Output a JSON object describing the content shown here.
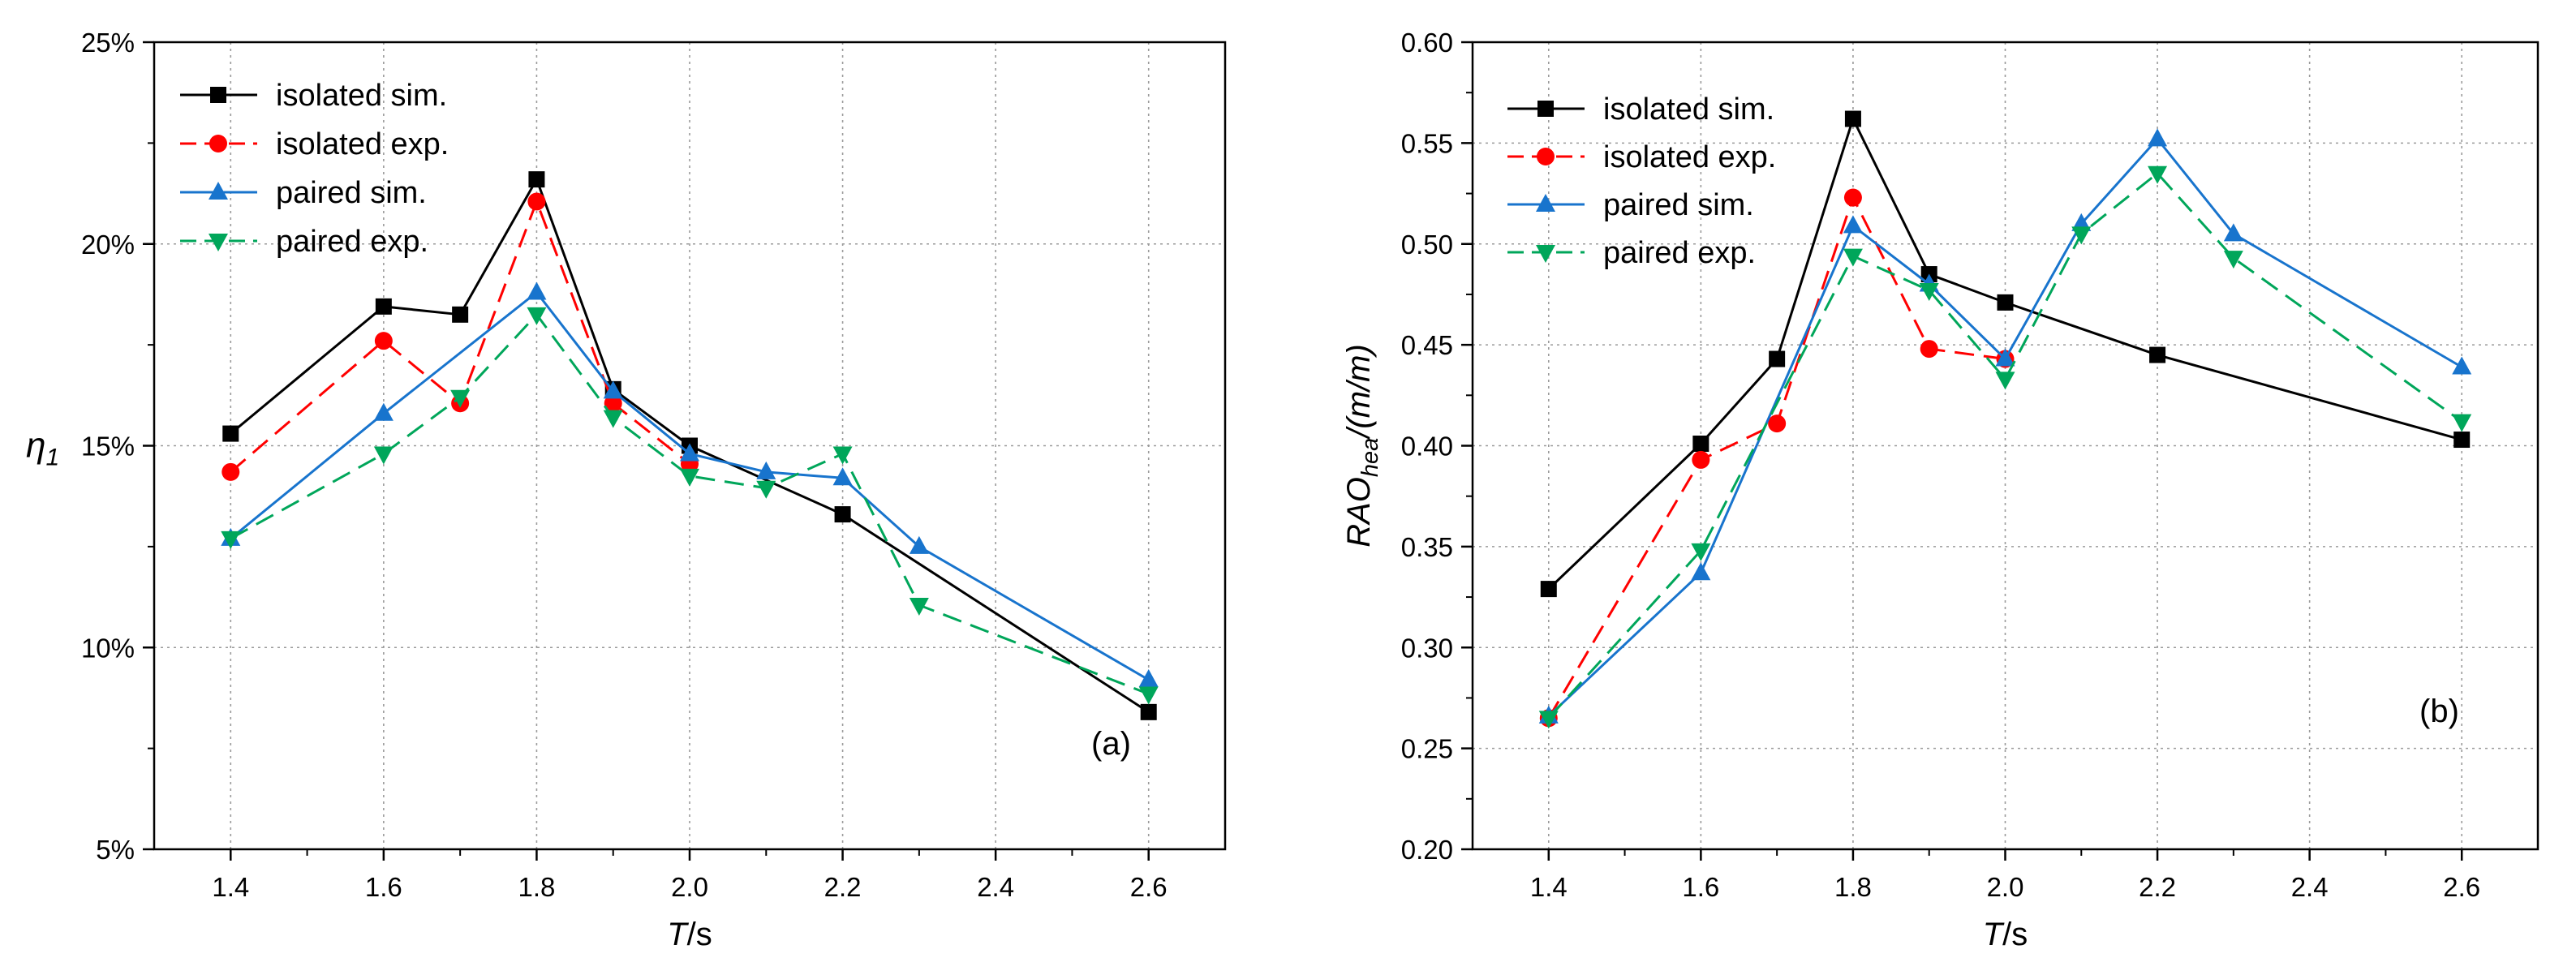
{
  "chart_data": [
    {
      "type": "line",
      "panel_label": "(a)",
      "title": "",
      "xlabel": {
        "italic": "T",
        "rest": "/s"
      },
      "ylabel": {
        "main": "η",
        "sub": "1"
      },
      "xlim": [
        1.3,
        2.7
      ],
      "ylim": [
        5,
        25
      ],
      "xticks": [
        1.4,
        1.6,
        1.8,
        2.0,
        2.2,
        2.4,
        2.6
      ],
      "xtick_labels": [
        "1.4",
        "1.6",
        "1.8",
        "2.0",
        "2.2",
        "2.4",
        "2.6"
      ],
      "yticks": [
        5,
        10,
        15,
        20,
        25
      ],
      "ytick_labels": [
        "5%",
        "10%",
        "15%",
        "20%",
        "25%"
      ],
      "grid": true,
      "legend_position": "top-left",
      "series": [
        {
          "name": "isolated sim.",
          "color": "#000000",
          "dash": "solid",
          "marker": "square",
          "x": [
            1.4,
            1.6,
            1.7,
            1.8,
            1.9,
            2.0,
            2.2,
            2.6
          ],
          "y": [
            15.3,
            18.45,
            18.25,
            21.6,
            16.4,
            15.0,
            13.3,
            8.4
          ]
        },
        {
          "name": "isolated exp.",
          "color": "#ff0000",
          "dash": "dashed",
          "marker": "circle",
          "x": [
            1.4,
            1.6,
            1.7,
            1.8,
            1.9,
            2.0
          ],
          "y": [
            14.35,
            17.6,
            16.05,
            21.05,
            16.05,
            14.55
          ]
        },
        {
          "name": "paired sim.",
          "color": "#1874cd",
          "dash": "solid",
          "marker": "triangle-up",
          "x": [
            1.4,
            1.6,
            1.8,
            1.9,
            2.0,
            2.1,
            2.2,
            2.3,
            2.6
          ],
          "y": [
            12.7,
            15.8,
            18.8,
            16.35,
            14.8,
            14.35,
            14.2,
            12.5,
            9.2
          ]
        },
        {
          "name": "paired exp.",
          "color": "#00a65a",
          "dash": "dashed",
          "marker": "triangle-down",
          "x": [
            1.4,
            1.6,
            1.7,
            1.8,
            1.9,
            2.0,
            2.1,
            2.2,
            2.3,
            2.6
          ],
          "y": [
            12.7,
            14.8,
            16.2,
            18.25,
            15.7,
            14.25,
            13.95,
            14.8,
            11.05,
            8.85
          ]
        }
      ]
    },
    {
      "type": "line",
      "panel_label": "(b)",
      "title": "",
      "xlabel": {
        "italic": "T",
        "rest": "/s"
      },
      "ylabel": {
        "main": "RAO",
        "sub": "hea",
        "rest": "/(m/m)"
      },
      "xlim": [
        1.3,
        2.7
      ],
      "ylim": [
        0.2,
        0.6
      ],
      "xticks": [
        1.4,
        1.6,
        1.8,
        2.0,
        2.2,
        2.4,
        2.6
      ],
      "xtick_labels": [
        "1.4",
        "1.6",
        "1.8",
        "2.0",
        "2.2",
        "2.4",
        "2.6"
      ],
      "yticks": [
        0.2,
        0.25,
        0.3,
        0.35,
        0.4,
        0.45,
        0.5,
        0.55,
        0.6
      ],
      "ytick_labels": [
        "0.20",
        "0.25",
        "0.30",
        "0.35",
        "0.40",
        "0.45",
        "0.50",
        "0.55",
        "0.60"
      ],
      "grid": true,
      "legend_position": "top-left",
      "series": [
        {
          "name": "isolated sim.",
          "color": "#000000",
          "dash": "solid",
          "marker": "square",
          "x": [
            1.4,
            1.6,
            1.7,
            1.8,
            1.9,
            2.0,
            2.2,
            2.6
          ],
          "y": [
            0.329,
            0.401,
            0.443,
            0.562,
            0.485,
            0.471,
            0.445,
            0.403
          ]
        },
        {
          "name": "isolated exp.",
          "color": "#ff0000",
          "dash": "dashed",
          "marker": "circle",
          "x": [
            1.4,
            1.6,
            1.7,
            1.8,
            1.9,
            2.0
          ],
          "y": [
            0.265,
            0.393,
            0.411,
            0.523,
            0.448,
            0.443
          ]
        },
        {
          "name": "paired sim.",
          "color": "#1874cd",
          "dash": "solid",
          "marker": "triangle-up",
          "x": [
            1.4,
            1.6,
            1.8,
            1.9,
            2.0,
            2.1,
            2.2,
            2.3,
            2.6
          ],
          "y": [
            0.266,
            0.337,
            0.509,
            0.48,
            0.443,
            0.51,
            0.552,
            0.505,
            0.439
          ]
        },
        {
          "name": "paired exp.",
          "color": "#00a65a",
          "dash": "dashed",
          "marker": "triangle-down",
          "x": [
            1.4,
            1.6,
            1.8,
            1.9,
            2.0,
            2.1,
            2.2,
            2.3,
            2.6
          ],
          "y": [
            0.265,
            0.348,
            0.494,
            0.477,
            0.433,
            0.505,
            0.535,
            0.493,
            0.412
          ]
        }
      ]
    }
  ]
}
